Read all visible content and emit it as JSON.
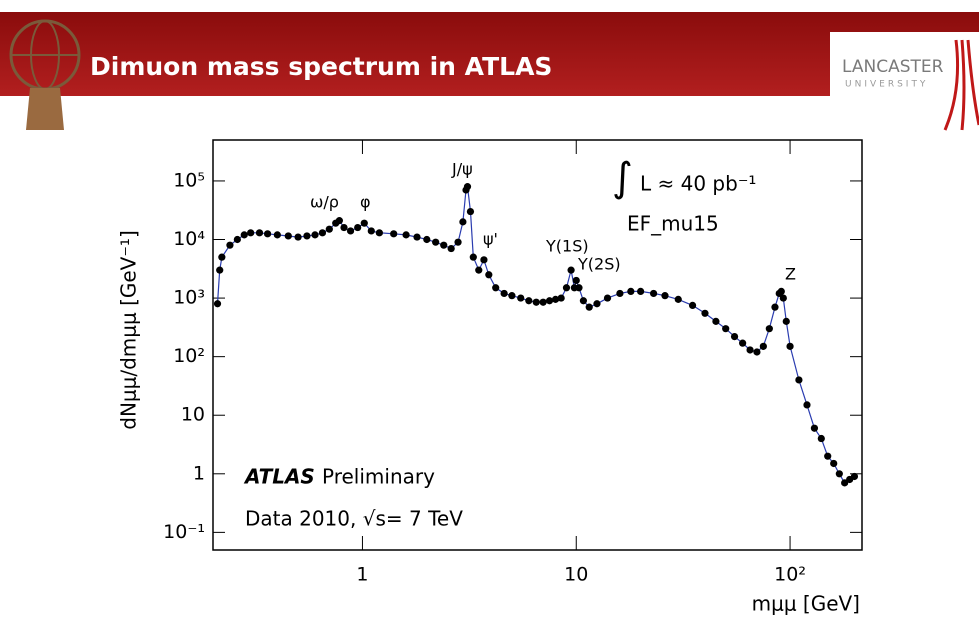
{
  "slide": {
    "title": "Dimuon mass spectrum in ATLAS",
    "logo_top": "LANCASTER",
    "logo_bottom": "UNIVERSITY"
  },
  "chart_data": {
    "type": "scatter",
    "xlabel": "mμμ [GeV]",
    "ylabel": "dNμμ/dmμμ [GeV⁻¹]",
    "log_x": true,
    "log_y": true,
    "color": "#000000",
    "line_color": "#2a3cb0",
    "xlim": [
      0.2,
      217
    ],
    "ylim": [
      0.05,
      500000
    ],
    "xticks": [
      1,
      10,
      {
        "value": 100,
        "label": "10²"
      }
    ],
    "yticks": [
      {
        "value": 0.1,
        "label": "10⁻¹"
      },
      1,
      10,
      {
        "value": 100,
        "label": "10²"
      },
      {
        "value": 1000,
        "label": "10³"
      },
      {
        "value": 10000,
        "label": "10⁴"
      },
      {
        "value": 100000,
        "label": "10⁵"
      }
    ],
    "annotations": [
      "ω/ρ",
      "φ",
      "J/ψ",
      "ψ'",
      "Υ(1S)",
      "Υ(2S)",
      "Z",
      "∫",
      "L ≈ 40 pb⁻¹",
      "EF_mu15",
      "ATLAS",
      "Preliminary",
      "Data 2010, √s= 7 TeV"
    ],
    "x": [
      0.21,
      0.215,
      0.22,
      0.24,
      0.26,
      0.28,
      0.3,
      0.33,
      0.36,
      0.4,
      0.45,
      0.5,
      0.55,
      0.6,
      0.65,
      0.7,
      0.75,
      0.78,
      0.82,
      0.88,
      0.95,
      1.02,
      1.1,
      1.2,
      1.4,
      1.6,
      1.8,
      2.0,
      2.2,
      2.4,
      2.6,
      2.8,
      2.95,
      3.05,
      3.1,
      3.2,
      3.3,
      3.5,
      3.7,
      3.9,
      4.2,
      4.6,
      5.0,
      5.5,
      6.0,
      6.5,
      7.0,
      7.5,
      8.0,
      8.5,
      9.0,
      9.46,
      9.8,
      10.0,
      10.3,
      10.8,
      11.5,
      12.5,
      14,
      16,
      18,
      20,
      23,
      26,
      30,
      35,
      40,
      45,
      50,
      55,
      60,
      65,
      70,
      75,
      80,
      85,
      89,
      91,
      93,
      96,
      100,
      110,
      120,
      130,
      140,
      150,
      160,
      170,
      180,
      190,
      200
    ],
    "values": [
      800,
      3000,
      5000,
      8000,
      10000,
      12000,
      13000,
      13000,
      12500,
      12000,
      11500,
      11000,
      11500,
      12000,
      13000,
      15000,
      19000,
      21000,
      16000,
      14000,
      16000,
      19000,
      14000,
      13000,
      12500,
      12000,
      11000,
      10000,
      9000,
      8000,
      7000,
      9000,
      20000,
      70000,
      80000,
      30000,
      5000,
      3000,
      4500,
      2500,
      1500,
      1200,
      1100,
      1000,
      900,
      850,
      850,
      900,
      950,
      1000,
      1500,
      3000,
      1500,
      2000,
      1500,
      900,
      700,
      800,
      1000,
      1200,
      1300,
      1300,
      1200,
      1100,
      950,
      750,
      550,
      400,
      300,
      220,
      170,
      130,
      120,
      150,
      300,
      700,
      1200,
      1300,
      1000,
      400,
      150,
      40,
      15,
      6,
      4,
      2,
      1.5,
      1,
      0.7,
      0.8,
      0.9
    ]
  }
}
